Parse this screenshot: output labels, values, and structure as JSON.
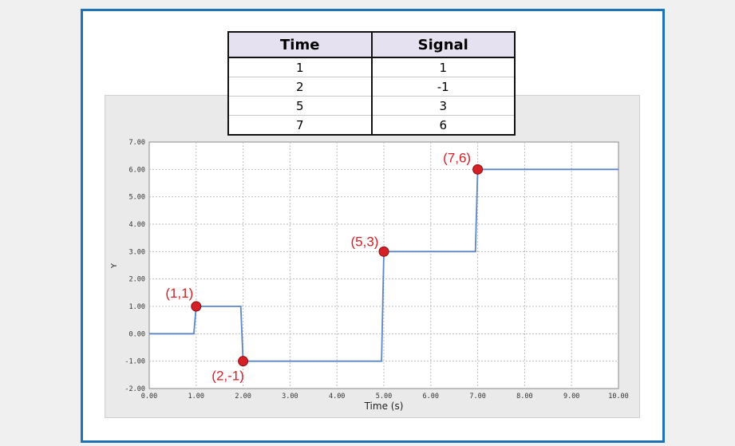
{
  "table": {
    "headers": [
      "Time",
      "Signal"
    ],
    "rows": [
      [
        "1",
        "1"
      ],
      [
        "2",
        "-1"
      ],
      [
        "5",
        "3"
      ],
      [
        "7",
        "6"
      ]
    ]
  },
  "chart_data": {
    "type": "line",
    "xlabel": "Time (s)",
    "ylabel": "Y",
    "xlim": [
      0,
      10
    ],
    "ylim": [
      -2,
      7
    ],
    "grid": true,
    "x_ticks": [
      "0.00",
      "1.00",
      "2.00",
      "3.00",
      "4.00",
      "5.00",
      "6.00",
      "7.00",
      "8.00",
      "9.00",
      "10.00"
    ],
    "y_ticks": [
      "-2.00",
      "-1.00",
      "0.00",
      "1.00",
      "2.00",
      "3.00",
      "4.00",
      "5.00",
      "6.00",
      "7.00"
    ],
    "series": [
      {
        "color": "#5b87c6",
        "x": [
          0,
          0.95,
          1,
          1.95,
          2,
          4.95,
          5,
          6.95,
          7,
          10
        ],
        "y": [
          0,
          0,
          1,
          1,
          -1,
          -1,
          3,
          3,
          6,
          6
        ]
      }
    ],
    "points": [
      {
        "x": 1,
        "y": 1,
        "label": "(1,1)"
      },
      {
        "x": 2,
        "y": -1,
        "label": "(2,-1)"
      },
      {
        "x": 5,
        "y": 3,
        "label": "(5,3)"
      },
      {
        "x": 7,
        "y": 6,
        "label": "(7,6)"
      }
    ],
    "point_color": "#d42027"
  }
}
